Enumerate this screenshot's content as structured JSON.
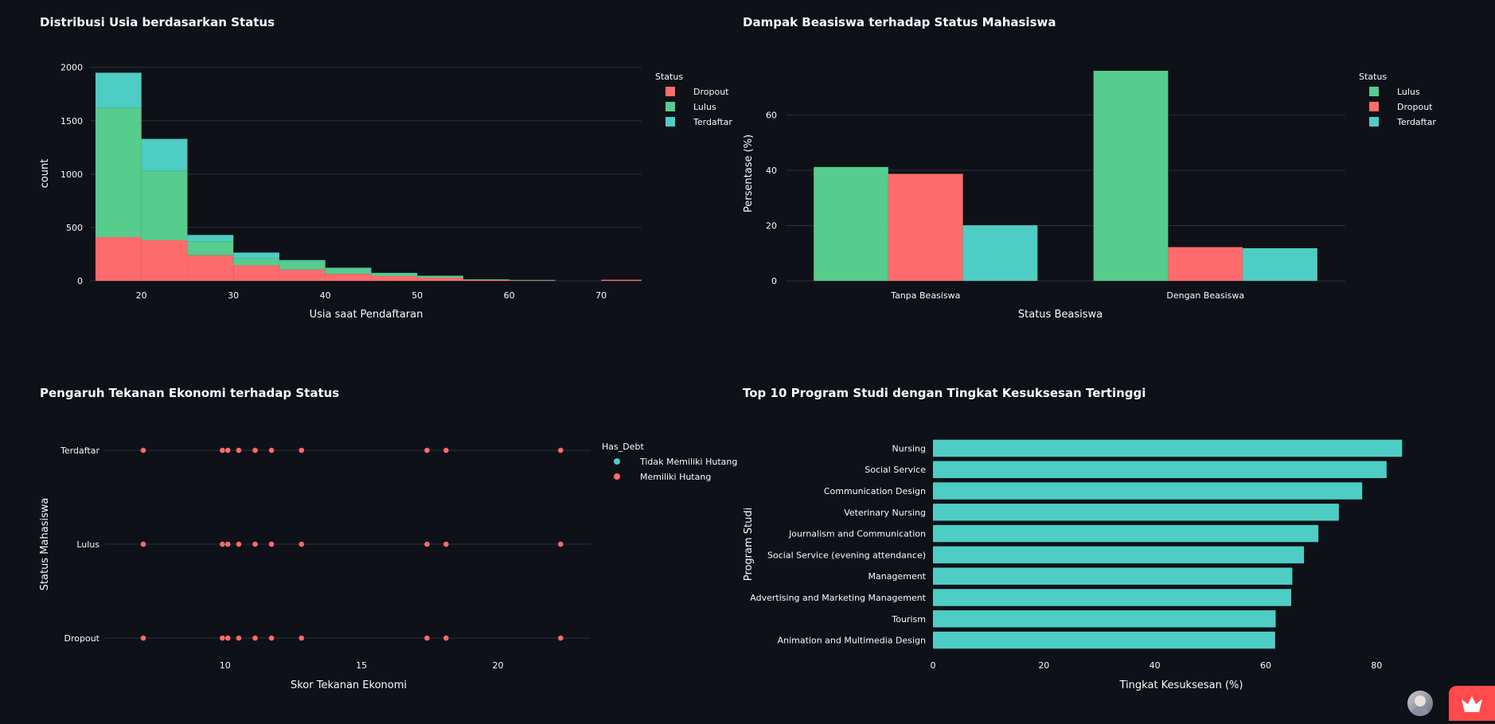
{
  "colors": {
    "dropout": "#ff6b6b",
    "lulus": "#56cc8d",
    "terdaftar": "#4ecdc4",
    "background": "#0e1117",
    "text": "#fafafa",
    "grid": "#2b2f3a"
  },
  "chart_data": [
    {
      "id": "age-histogram",
      "type": "bar",
      "stacked": true,
      "title": "Distribusi Usia berdasarkan Status",
      "xlabel": "Usia saat Pendaftaran",
      "ylabel": "count",
      "xlim": [
        14.4,
        74.4
      ],
      "ylim": [
        0,
        2020
      ],
      "xticks": [
        20,
        30,
        40,
        50,
        60,
        70
      ],
      "yticks": [
        0,
        500,
        1000,
        1500,
        2000
      ],
      "legend_title": "Status",
      "legend_position": "top-right",
      "bins": [
        [
          15,
          20
        ],
        [
          20,
          25
        ],
        [
          25,
          30
        ],
        [
          30,
          35
        ],
        [
          35,
          40
        ],
        [
          40,
          45
        ],
        [
          45,
          50
        ],
        [
          50,
          55
        ],
        [
          55,
          60
        ],
        [
          60,
          65
        ],
        [
          65,
          70
        ],
        [
          70,
          75
        ]
      ],
      "series": [
        {
          "name": "Dropout",
          "color_key": "dropout",
          "values": [
            410,
            380,
            240,
            145,
            105,
            65,
            45,
            30,
            8,
            5,
            0,
            10
          ]
        },
        {
          "name": "Lulus",
          "color_key": "lulus",
          "values": [
            1210,
            650,
            130,
            65,
            80,
            50,
            25,
            15,
            5,
            3,
            0,
            0
          ]
        },
        {
          "name": "Terdaftar",
          "color_key": "terdaftar",
          "values": [
            330,
            300,
            60,
            55,
            10,
            8,
            5,
            3,
            2,
            1,
            0,
            0
          ]
        }
      ]
    },
    {
      "id": "scholarship-bar",
      "type": "bar",
      "grouped": true,
      "title": "Dampak Beasiswa terhadap Status Mahasiswa",
      "xlabel": "Status Beasiswa",
      "ylabel": "Persentase (%)",
      "ylim": [
        0,
        78
      ],
      "yticks": [
        0,
        20,
        40,
        60
      ],
      "categories": [
        "Tanpa Beasiswa",
        "Dengan Beasiswa"
      ],
      "legend_title": "Status",
      "legend_position": "top-right",
      "series": [
        {
          "name": "Lulus",
          "color_key": "lulus",
          "values": [
            41.2,
            76.0
          ]
        },
        {
          "name": "Dropout",
          "color_key": "dropout",
          "values": [
            38.7,
            12.2
          ]
        },
        {
          "name": "Terdaftar",
          "color_key": "terdaftar",
          "values": [
            20.1,
            11.8
          ]
        }
      ]
    },
    {
      "id": "economic-scatter",
      "type": "scatter",
      "title": "Pengaruh Tekanan Ekonomi terhadap Status",
      "xlabel": "Skor Tekanan Ekonomi",
      "ylabel": "Status Mahasiswa",
      "xlim": [
        5.6,
        23.4
      ],
      "xticks": [
        10,
        15,
        20
      ],
      "categories": [
        "Terdaftar",
        "Lulus",
        "Dropout"
      ],
      "x_values": [
        7.0,
        9.9,
        10.1,
        10.5,
        11.1,
        11.7,
        12.8,
        17.4,
        18.1,
        22.3
      ],
      "legend_title": "Has_Debt",
      "legend_position": "top-right",
      "series": [
        {
          "name": "Tidak Memiliki Hutang",
          "color_key": "terdaftar"
        },
        {
          "name": "Memiliki Hutang",
          "color_key": "dropout"
        }
      ]
    },
    {
      "id": "program-bar",
      "type": "bar",
      "orientation": "horizontal",
      "title": "Top 10 Program Studi dengan Tingkat Kesuksesan Tertinggi",
      "xlabel": "Tingkat Kesuksesan (%)",
      "ylabel": "Program Studi",
      "xlim": [
        0,
        88
      ],
      "xticks": [
        0,
        20,
        40,
        60,
        80
      ],
      "color_key": "terdaftar",
      "categories": [
        "Nursing",
        "Social Service",
        "Communication Design",
        "Veterinary Nursing",
        "Journalism and Communication",
        "Social Service (evening attendance)",
        "Management",
        "Advertising and Marketing Management",
        "Tourism",
        "Animation and Multimedia Design"
      ],
      "values": [
        84.6,
        81.8,
        77.4,
        73.2,
        69.5,
        66.9,
        64.8,
        64.6,
        61.8,
        61.7
      ]
    }
  ]
}
